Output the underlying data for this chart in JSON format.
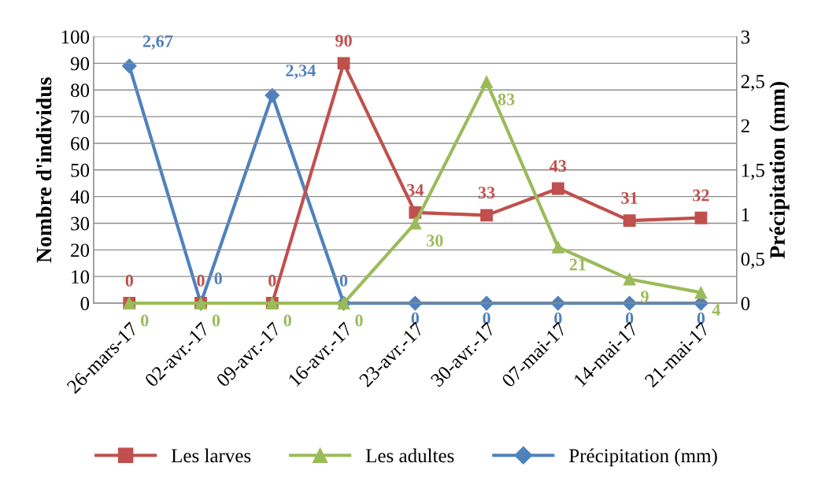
{
  "chart_data": {
    "type": "line",
    "categories": [
      "26-mars-17",
      "02-avr.-17",
      "09-avr.-17",
      "16-avr.-17",
      "23-avr.-17",
      "30-avr.-17",
      "07-mai-17",
      "14-mai-17",
      "21-mai-17"
    ],
    "ylabel": "Nombre d'individus",
    "y2label": "Précipitation (mm)",
    "ylim": [
      0,
      100
    ],
    "yticks": [
      0,
      10,
      20,
      30,
      40,
      50,
      60,
      70,
      80,
      90,
      100
    ],
    "y2lim": [
      0,
      3
    ],
    "y2ticks": [
      0,
      {
        "value": 0.5,
        "label": "0,5"
      },
      1,
      {
        "value": 1.5,
        "label": "1,5"
      },
      2,
      {
        "value": 2.5,
        "label": "2,5"
      },
      3
    ],
    "grid": "y",
    "legend": "bottom",
    "series": [
      {
        "name": "Les larves",
        "color": "#c0504d",
        "marker": "square",
        "values": [
          0,
          0,
          0,
          90,
          34,
          33,
          43,
          31,
          32
        ],
        "value_labels": [
          "0",
          "0",
          "0",
          "90",
          "34",
          "33",
          "43",
          "31",
          "32"
        ]
      },
      {
        "name": "Les adultes",
        "color": "#9bbb59",
        "marker": "triangle",
        "values": [
          0,
          0,
          0,
          0,
          30,
          83,
          21,
          9,
          4
        ],
        "value_labels": [
          "0",
          "0",
          "0",
          "0",
          "30",
          "83",
          "21",
          "9",
          "4"
        ]
      },
      {
        "name": "Précipitation (mm)",
        "color": "#4f81bd",
        "marker": "diamond",
        "axis": "y2",
        "values": [
          2.67,
          0,
          2.34,
          0,
          0,
          0,
          0,
          0,
          0
        ],
        "value_labels": [
          "2,67",
          "0",
          "2,34",
          "0",
          "0",
          "0",
          "0",
          "0",
          "0"
        ]
      }
    ]
  }
}
